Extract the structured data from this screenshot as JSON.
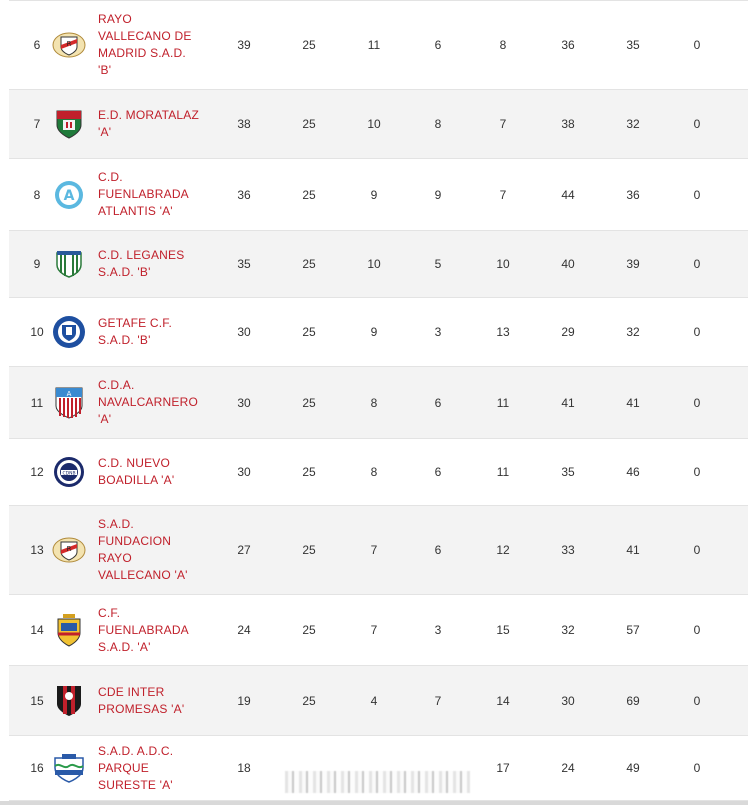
{
  "standings": [
    {
      "pos": "6",
      "team_lines": [
        "RAYO",
        "VALLECANO DE",
        "MADRID S.A.D.",
        "'B'"
      ],
      "crest": "rayo-crest-icon",
      "stats": [
        "39",
        "25",
        "11",
        "6",
        "8",
        "36",
        "35",
        "0"
      ]
    },
    {
      "pos": "7",
      "team_lines": [
        "E.D. MORATALAZ",
        "'A'"
      ],
      "crest": "moratalaz-crest-icon",
      "stats": [
        "38",
        "25",
        "10",
        "8",
        "7",
        "38",
        "32",
        "0"
      ]
    },
    {
      "pos": "8",
      "team_lines": [
        "C.D.",
        "FUENLABRADA",
        "ATLANTIS 'A'"
      ],
      "crest": "atlantis-crest-icon",
      "stats": [
        "36",
        "25",
        "9",
        "9",
        "7",
        "44",
        "36",
        "0"
      ]
    },
    {
      "pos": "9",
      "team_lines": [
        "C.D. LEGANES",
        "S.A.D. 'B'"
      ],
      "crest": "leganes-crest-icon",
      "stats": [
        "35",
        "25",
        "10",
        "5",
        "10",
        "40",
        "39",
        "0"
      ]
    },
    {
      "pos": "10",
      "team_lines": [
        "GETAFE C.F.",
        "S.A.D. 'B'"
      ],
      "crest": "getafe-crest-icon",
      "stats": [
        "30",
        "25",
        "9",
        "3",
        "13",
        "29",
        "32",
        "0"
      ]
    },
    {
      "pos": "11",
      "team_lines": [
        "C.D.A.",
        "NAVALCARNERO",
        "'A'"
      ],
      "crest": "navalcarnero-crest-icon",
      "stats": [
        "30",
        "25",
        "8",
        "6",
        "11",
        "41",
        "41",
        "0"
      ]
    },
    {
      "pos": "12",
      "team_lines": [
        "C.D. NUEVO",
        "BOADILLA 'A'"
      ],
      "crest": "boadilla-crest-icon",
      "stats": [
        "30",
        "25",
        "8",
        "6",
        "11",
        "35",
        "46",
        "0"
      ]
    },
    {
      "pos": "13",
      "team_lines": [
        "S.A.D.",
        "FUNDACION",
        "RAYO",
        "VALLECANO 'A'"
      ],
      "crest": "rayo-crest-icon",
      "stats": [
        "27",
        "25",
        "7",
        "6",
        "12",
        "33",
        "41",
        "0"
      ]
    },
    {
      "pos": "14",
      "team_lines": [
        "C.F.",
        "FUENLABRADA",
        "S.A.D. 'A'"
      ],
      "crest": "fuenlabrada-crest-icon",
      "stats": [
        "24",
        "25",
        "7",
        "3",
        "15",
        "32",
        "57",
        "0"
      ]
    },
    {
      "pos": "15",
      "team_lines": [
        "CDE INTER",
        "PROMESAS 'A'"
      ],
      "crest": "inter-promesas-crest-icon",
      "stats": [
        "19",
        "25",
        "4",
        "7",
        "14",
        "30",
        "69",
        "0"
      ]
    },
    {
      "pos": "16",
      "team_lines": [
        "S.A.D. A.D.C.",
        "PARQUE",
        "SURESTE 'A'"
      ],
      "crest": "parque-sureste-crest-icon",
      "stats": [
        "18",
        "",
        "",
        "",
        "17",
        "24",
        "49",
        "0"
      ]
    }
  ],
  "colors": {
    "team_link": "#c0202b",
    "row_alt": "#f3f3f3",
    "border": "#e3e3e3"
  }
}
